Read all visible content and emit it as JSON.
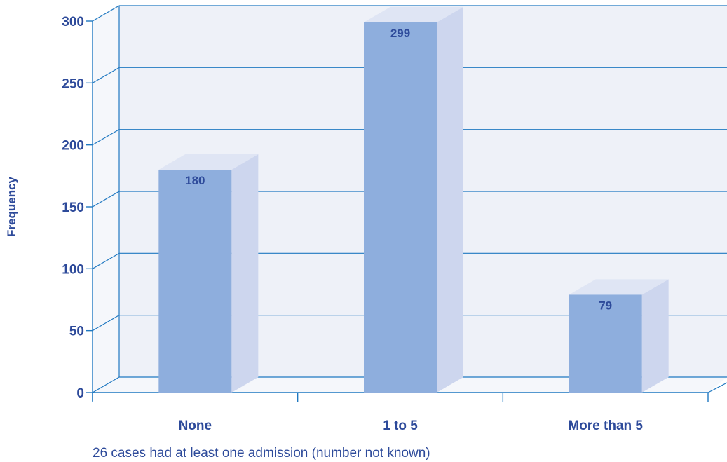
{
  "chart_data": {
    "type": "bar",
    "categories": [
      "None",
      "1 to 5",
      "More than 5"
    ],
    "values": [
      180,
      299,
      79
    ],
    "data_labels": [
      "180",
      "299",
      "79"
    ],
    "ylabel": "Frequency",
    "xlabel": "",
    "ylim": [
      0,
      300
    ],
    "yticks": [
      0,
      50,
      100,
      150,
      200,
      250,
      300
    ],
    "ytick_labels": [
      "0",
      "50",
      "100",
      "150",
      "200",
      "250",
      "300"
    ],
    "grid": true,
    "style": "3d",
    "colors": {
      "bar_front": "#8eaedd",
      "bar_side": "#cdd6ee",
      "bar_top": "#dfe5f4",
      "wall": "#eef1f8",
      "grid": "#1f78c1",
      "text": "#2d4a9a"
    }
  },
  "footnote": "26 cases had at least one admission (number not known)"
}
